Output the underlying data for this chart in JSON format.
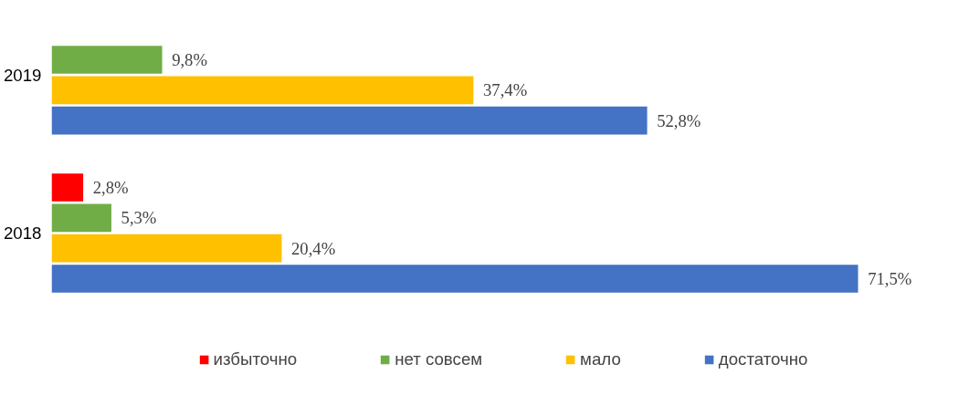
{
  "chart_data": {
    "type": "bar",
    "orientation": "horizontal",
    "categories": [
      "2019",
      "2018"
    ],
    "series": [
      {
        "name": "избыточно",
        "color": "#ff0000",
        "values": [
          null,
          2.8
        ],
        "value_labels": [
          null,
          "2,8%"
        ]
      },
      {
        "name": "нет совсем",
        "color": "#70ad47",
        "values": [
          9.8,
          5.3
        ],
        "value_labels": [
          "9,8%",
          "5,3%"
        ]
      },
      {
        "name": "мало",
        "color": "#ffc000",
        "values": [
          37.4,
          20.4
        ],
        "value_labels": [
          "37,4%",
          "20,4%"
        ]
      },
      {
        "name": "достаточно",
        "color": "#4472c4",
        "values": [
          52.8,
          71.5
        ],
        "value_labels": [
          "52,8%",
          "71,5%"
        ]
      }
    ],
    "legend": "bottom",
    "tick_labels": "y"
  }
}
